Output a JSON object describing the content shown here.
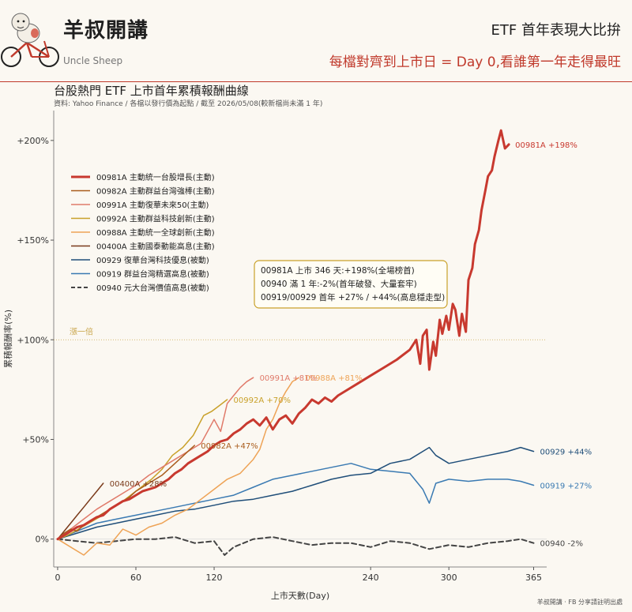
{
  "header": {
    "brand_title": "羊叔開講",
    "brand_subtitle": "Uncle Sheep",
    "heading": "ETF 首年表現大比拚",
    "subheading": "每檔對齊到上市日 = Day 0,看誰第一年走得最旺"
  },
  "footer": {
    "note": "羊叔開講 · FB 分享請註明出處"
  },
  "chart_data": {
    "type": "line",
    "title": "台股熱門 ETF 上市首年累積報酬曲線",
    "subtitle": "資料: Yahoo Finance / 各檔以發行價為起點 / 截至 2026/05/08(較新檔尚未滿 1 年)",
    "xlabel": "上市天數(Day)",
    "ylabel": "累積報酬率(%)",
    "xlim": [
      -3,
      375
    ],
    "ylim": [
      -14,
      215
    ],
    "xticks": [
      0,
      60,
      120,
      240,
      300,
      365
    ],
    "xtick_labels": [
      "0",
      "60",
      "120",
      "240",
      "300",
      "365"
    ],
    "yticks": [
      0,
      50,
      100,
      150,
      200
    ],
    "ytick_labels": [
      "0%",
      "+50%",
      "+100%",
      "+150%",
      "+200%"
    ],
    "grid": false,
    "legend_position": "upper-left",
    "reference_line": {
      "y": 100,
      "label": "漲一倍",
      "color": "#c9a54a"
    },
    "annotation": {
      "lines": [
        "00981A 上市 346 天:+198%(全場榜首)",
        "00940 滿 1 年:-2%(首年破發、大量套牢)",
        "00919/00929 首年 +27% / +44%(高息穩走型)"
      ],
      "anchor": {
        "x": 300,
        "y": 130
      }
    },
    "series": [
      {
        "name": "00981A  主動統一台股增長(主動)",
        "color": "#c8392f",
        "width": 3,
        "dash": false,
        "end_label": "00981A  +198%",
        "x": [
          0,
          5,
          10,
          15,
          20,
          25,
          30,
          35,
          40,
          45,
          50,
          55,
          60,
          65,
          70,
          75,
          80,
          85,
          90,
          95,
          100,
          105,
          110,
          115,
          120,
          125,
          130,
          135,
          140,
          145,
          150,
          155,
          160,
          165,
          170,
          175,
          180,
          185,
          190,
          195,
          200,
          205,
          210,
          215,
          220,
          230,
          240,
          250,
          260,
          270,
          275,
          278,
          280,
          283,
          285,
          288,
          290,
          293,
          295,
          298,
          300,
          303,
          305,
          308,
          310,
          313,
          315,
          318,
          320,
          323,
          325,
          328,
          330,
          333,
          335,
          338,
          340,
          343,
          346
        ],
        "y": [
          0,
          2,
          4,
          6,
          7,
          9,
          11,
          12,
          15,
          17,
          19,
          20,
          22,
          24,
          25,
          26,
          28,
          30,
          33,
          35,
          38,
          40,
          42,
          44,
          47,
          49,
          50,
          53,
          55,
          58,
          60,
          57,
          61,
          55,
          60,
          62,
          58,
          63,
          66,
          70,
          68,
          71,
          69,
          72,
          74,
          78,
          82,
          86,
          90,
          95,
          100,
          88,
          102,
          105,
          85,
          99,
          92,
          110,
          103,
          112,
          105,
          118,
          115,
          102,
          113,
          104,
          130,
          136,
          148,
          155,
          165,
          175,
          182,
          185,
          192,
          200,
          205,
          196,
          198
        ]
      },
      {
        "name": "00982A  主動群益台灣強棒(主動)",
        "color": "#a95c1c",
        "width": 1.5,
        "dash": false,
        "end_label": "00982A  +47%",
        "x": [
          0,
          5,
          10,
          15,
          20,
          25,
          30,
          35,
          40,
          45,
          50,
          55,
          60,
          65,
          70,
          75,
          80,
          85,
          90,
          95,
          100,
          105
        ],
        "y": [
          0,
          3,
          5,
          4,
          7,
          9,
          11,
          13,
          15,
          17,
          19,
          21,
          24,
          26,
          28,
          30,
          32,
          35,
          38,
          41,
          44,
          47
        ]
      },
      {
        "name": "00991A  主動復華未來50(主動)",
        "color": "#e07a6a",
        "width": 1.5,
        "dash": false,
        "end_label": "00991A  +81%",
        "x": [
          0,
          10,
          20,
          30,
          40,
          50,
          60,
          70,
          80,
          90,
          100,
          110,
          120,
          125,
          130,
          135,
          140,
          145,
          150
        ],
        "y": [
          0,
          5,
          10,
          15,
          19,
          23,
          27,
          32,
          36,
          40,
          44,
          48,
          60,
          54,
          68,
          72,
          76,
          79,
          81
        ]
      },
      {
        "name": "00992A  主動群益科技創新(主動)",
        "color": "#c9a12a",
        "width": 1.5,
        "dash": false,
        "end_label": "00992A  +70%",
        "x": [
          0,
          8,
          16,
          24,
          32,
          40,
          48,
          56,
          64,
          72,
          80,
          88,
          96,
          104,
          112,
          118,
          124,
          130
        ],
        "y": [
          0,
          2,
          5,
          8,
          11,
          15,
          18,
          22,
          26,
          30,
          35,
          42,
          46,
          52,
          62,
          64,
          67,
          70
        ]
      },
      {
        "name": "00988A  主動統一全球創新(主動)",
        "color": "#eea356",
        "width": 1.5,
        "dash": false,
        "end_label": "00988A  +81%",
        "x": [
          0,
          10,
          20,
          30,
          40,
          50,
          60,
          70,
          80,
          90,
          100,
          110,
          120,
          130,
          140,
          150,
          155,
          160,
          165,
          170,
          175,
          180,
          185
        ],
        "y": [
          0,
          -4,
          -8,
          -2,
          -3,
          5,
          2,
          6,
          8,
          12,
          15,
          20,
          25,
          30,
          33,
          40,
          45,
          55,
          60,
          68,
          74,
          79,
          81
        ]
      },
      {
        "name": "00400A  主動國泰動能高息(主動)",
        "color": "#7a3a1a",
        "width": 1.5,
        "dash": false,
        "end_label": "00400A  +28%",
        "x": [
          0,
          5,
          10,
          15,
          20,
          25,
          30,
          35
        ],
        "y": [
          0,
          4,
          8,
          12,
          16,
          20,
          24,
          28
        ]
      },
      {
        "name": "00929  復華台灣科技優息(被動)",
        "color": "#1f4e79",
        "width": 1.5,
        "dash": false,
        "end_label": "00929  +44%",
        "x": [
          0,
          15,
          30,
          45,
          60,
          75,
          90,
          105,
          120,
          135,
          150,
          165,
          180,
          195,
          210,
          225,
          240,
          255,
          270,
          280,
          285,
          290,
          300,
          315,
          330,
          345,
          355,
          365
        ],
        "y": [
          0,
          3,
          6,
          8,
          10,
          12,
          14,
          15,
          17,
          19,
          20,
          22,
          24,
          27,
          30,
          32,
          33,
          38,
          40,
          44,
          46,
          42,
          38,
          40,
          42,
          44,
          46,
          44
        ]
      },
      {
        "name": "00919  群益台灣精選高息(被動)",
        "color": "#3a7ab2",
        "width": 1.5,
        "dash": false,
        "end_label": "00919  +27%",
        "x": [
          0,
          15,
          30,
          45,
          60,
          75,
          90,
          105,
          120,
          135,
          150,
          165,
          180,
          195,
          210,
          225,
          240,
          255,
          270,
          280,
          285,
          290,
          300,
          315,
          330,
          345,
          355,
          365
        ],
        "y": [
          0,
          4,
          8,
          10,
          12,
          14,
          16,
          18,
          20,
          22,
          26,
          30,
          32,
          34,
          36,
          38,
          35,
          34,
          33,
          25,
          18,
          28,
          30,
          29,
          30,
          30,
          29,
          27
        ]
      },
      {
        "name": "00940  元大台灣價值高息(被動)",
        "color": "#444444",
        "width": 2,
        "dash": true,
        "end_label": "00940  -2%",
        "x": [
          0,
          15,
          30,
          45,
          60,
          75,
          90,
          105,
          120,
          128,
          135,
          150,
          165,
          180,
          195,
          210,
          225,
          240,
          255,
          270,
          285,
          300,
          315,
          330,
          345,
          355,
          365
        ],
        "y": [
          0,
          -1,
          -2,
          -1,
          0,
          0,
          1,
          -2,
          -1,
          -8,
          -4,
          0,
          1,
          -1,
          -3,
          -2,
          -2,
          -4,
          -1,
          -2,
          -5,
          -3,
          -4,
          -2,
          -1,
          0,
          -2
        ]
      }
    ]
  }
}
